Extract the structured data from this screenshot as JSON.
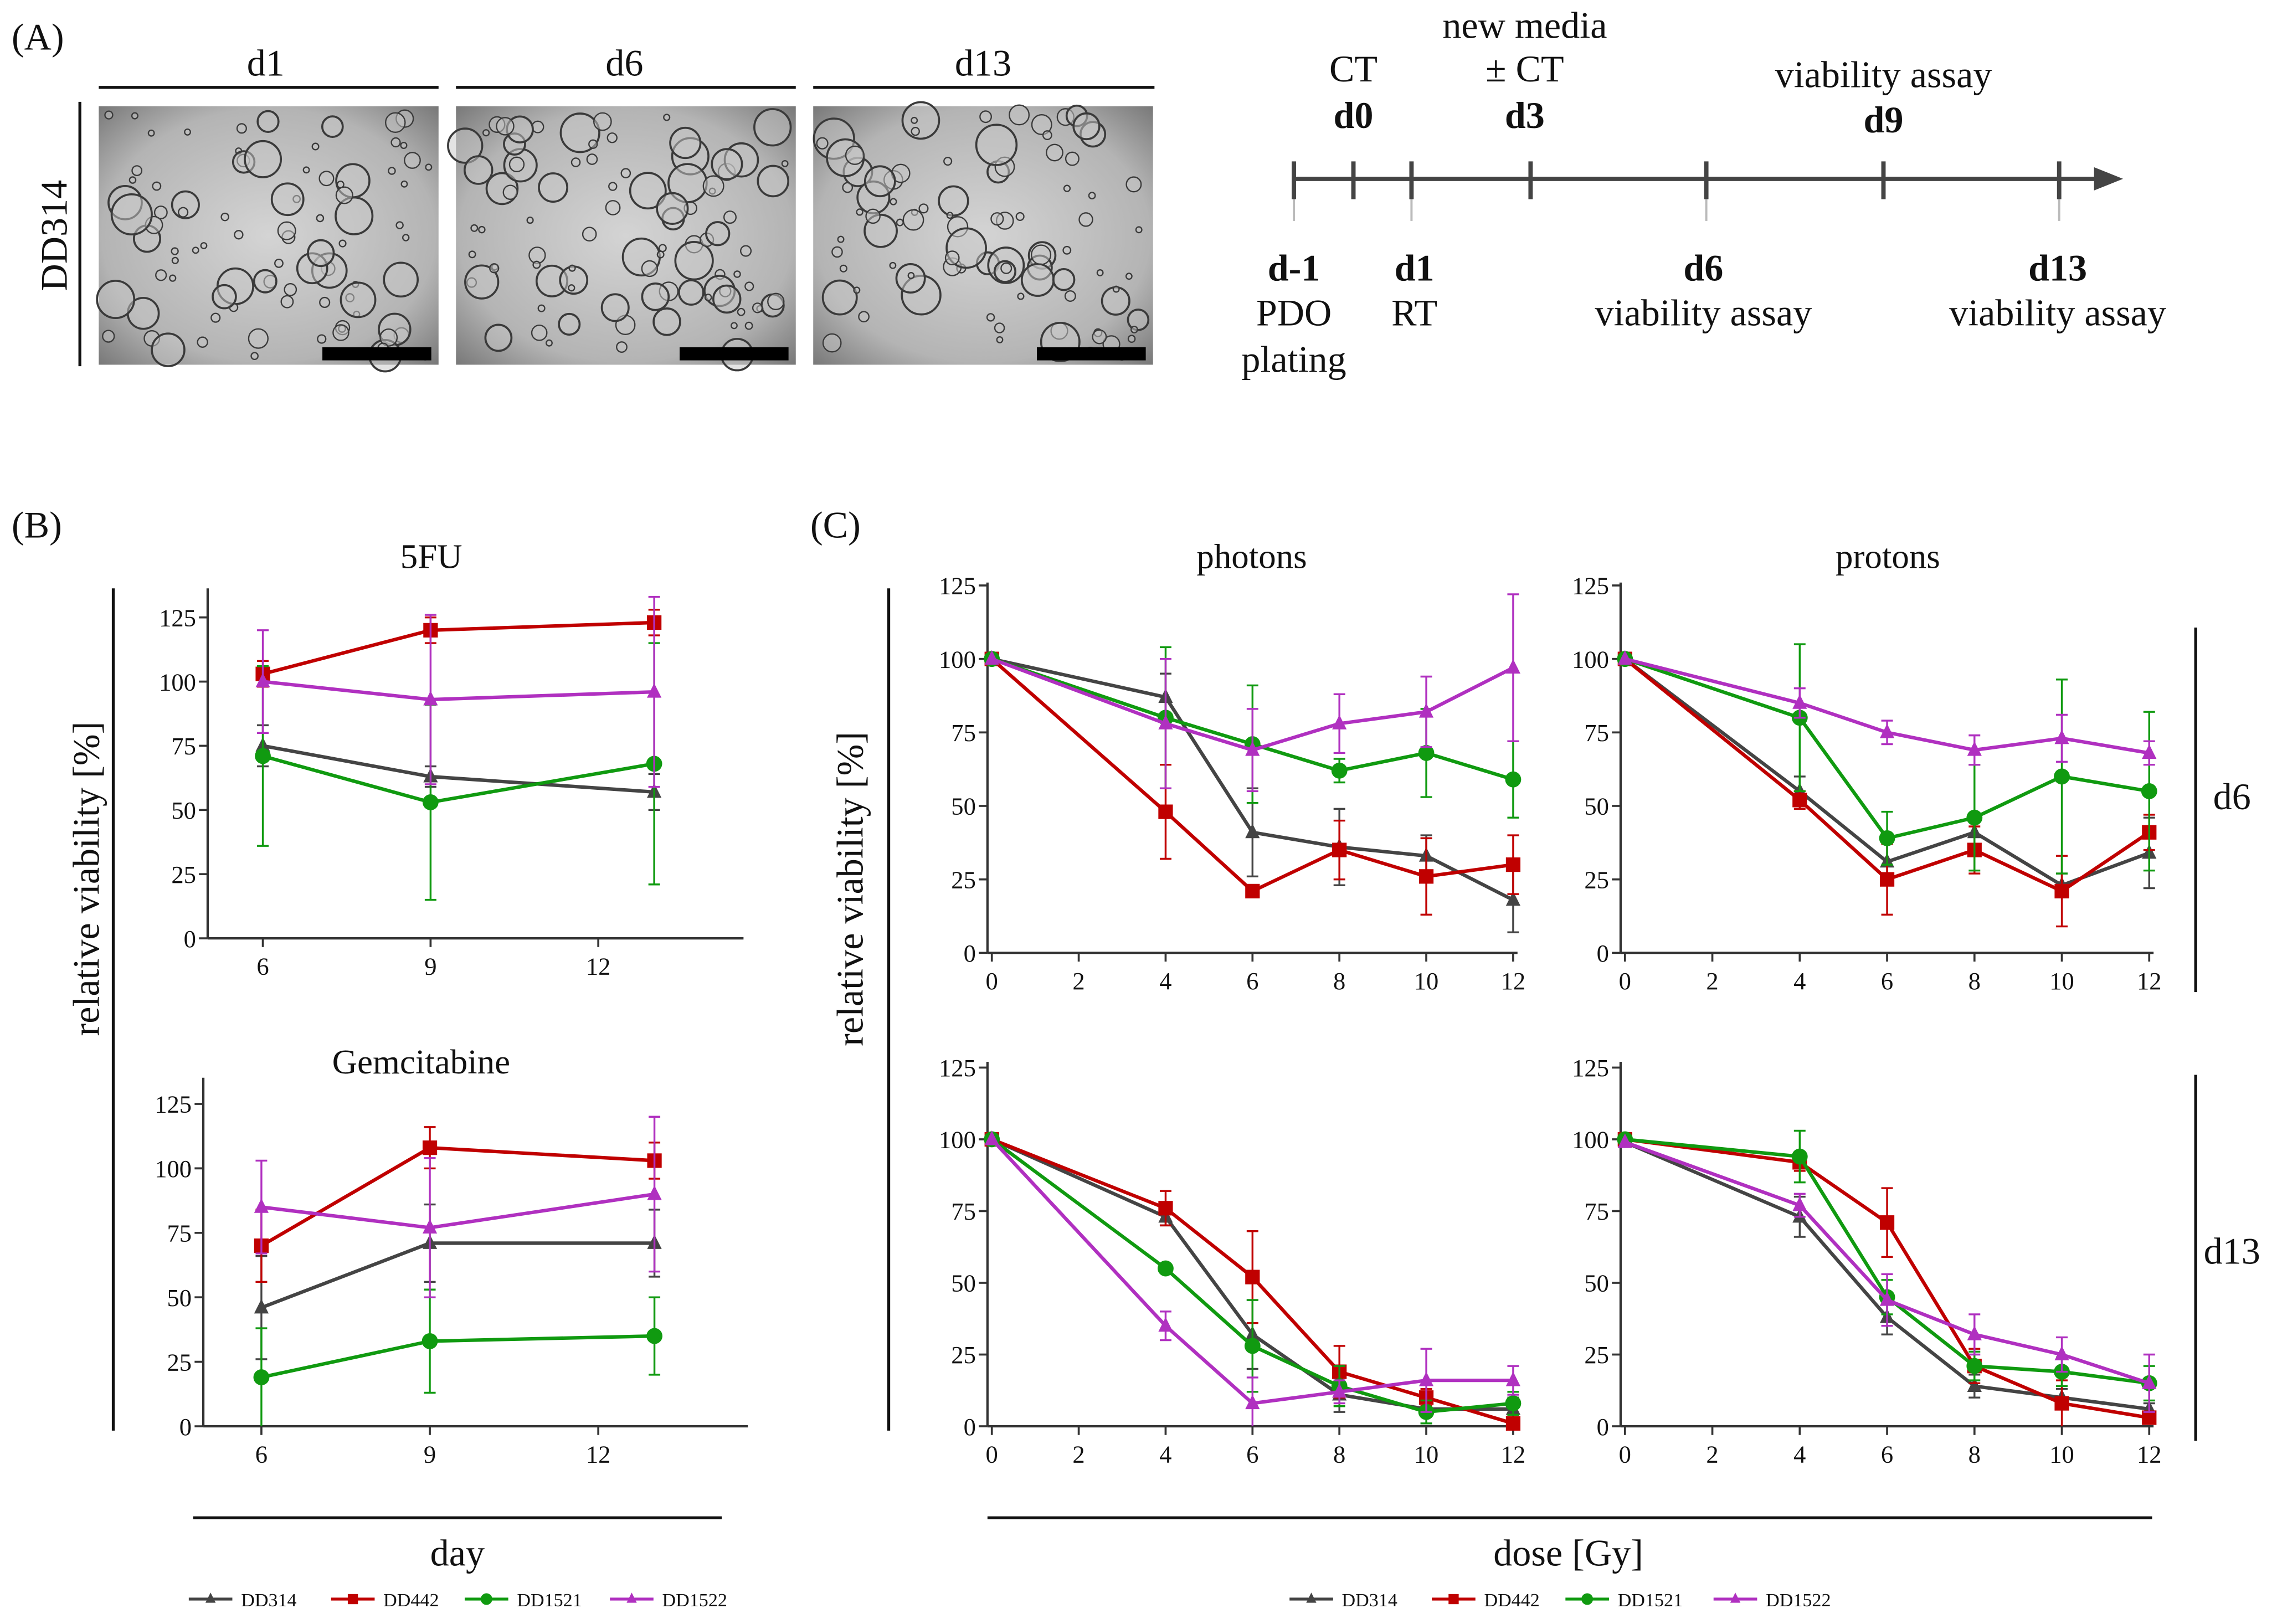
{
  "panel_a": {
    "label": "(A)",
    "sample": "DD314",
    "images": [
      {
        "day": "d1"
      },
      {
        "day": "d6"
      },
      {
        "day": "d13"
      }
    ],
    "timeline": {
      "above": [
        {
          "lines": [
            "CT"
          ],
          "day": "d0"
        },
        {
          "lines": [
            "new media",
            "± CT"
          ],
          "day": "d3"
        },
        {
          "lines": [
            "viability assay"
          ],
          "day": "d9"
        }
      ],
      "below": [
        {
          "day": "d-1",
          "lines": [
            "PDO",
            "plating"
          ]
        },
        {
          "day": "d1",
          "lines": [
            "RT"
          ]
        },
        {
          "day": "d6",
          "lines": [
            "viability assay"
          ]
        },
        {
          "day": "d13",
          "lines": [
            "viability assay"
          ]
        }
      ]
    }
  },
  "panel_b": {
    "label": "(B)",
    "ylabel": "relative viability [%]",
    "xlabel": "day"
  },
  "panel_c": {
    "label": "(C)",
    "ylabel": "relative viability [%]",
    "xlabel": "dose [Gy]",
    "row_labels": [
      "d6",
      "d13"
    ]
  },
  "legend": [
    "DD314",
    "DD442",
    "DD1521",
    "DD1522"
  ],
  "colors": {
    "DD314": "#444444",
    "DD442": "#c00000",
    "DD1521": "#109a10",
    "DD1522": "#b030c0"
  },
  "chart_data": [
    {
      "type": "line",
      "title": "5FU",
      "xlabel": "day",
      "ylabel": "relative viability [%]",
      "xticks": [
        6,
        9,
        12
      ],
      "yticks": [
        0,
        25,
        50,
        75,
        100,
        125
      ],
      "ylim": [
        0,
        125
      ],
      "x": [
        6,
        9,
        13
      ],
      "series": [
        {
          "name": "DD314",
          "values": [
            75,
            63,
            57
          ],
          "err": [
            8,
            4,
            7
          ]
        },
        {
          "name": "DD442",
          "values": [
            103,
            120,
            123
          ],
          "err": [
            5,
            5,
            5
          ]
        },
        {
          "name": "DD1521",
          "values": [
            71,
            53,
            68
          ],
          "err": [
            35,
            38,
            47
          ]
        },
        {
          "name": "DD1522",
          "values": [
            100,
            93,
            96
          ],
          "err": [
            20,
            33,
            37
          ]
        }
      ]
    },
    {
      "type": "line",
      "title": "Gemcitabine",
      "xlabel": "day",
      "ylabel": "relative viability [%]",
      "xticks": [
        6,
        9,
        12
      ],
      "yticks": [
        0,
        25,
        50,
        75,
        100,
        125
      ],
      "ylim": [
        0,
        125
      ],
      "x": [
        6,
        9,
        13
      ],
      "series": [
        {
          "name": "DD314",
          "values": [
            46,
            71,
            71
          ],
          "err": [
            20,
            15,
            13
          ]
        },
        {
          "name": "DD442",
          "values": [
            70,
            108,
            103
          ],
          "err": [
            14,
            8,
            7
          ]
        },
        {
          "name": "DD1521",
          "values": [
            19,
            33,
            35
          ],
          "err": [
            19,
            20,
            15
          ]
        },
        {
          "name": "DD1522",
          "values": [
            85,
            77,
            90
          ],
          "err": [
            18,
            27,
            30
          ]
        }
      ]
    },
    {
      "type": "line",
      "title": "photons",
      "row": "d6",
      "xlabel": "dose [Gy]",
      "ylabel": "relative viability [%]",
      "xticks": [
        0,
        2,
        4,
        6,
        8,
        10,
        12
      ],
      "yticks": [
        0,
        25,
        50,
        75,
        100,
        125
      ],
      "ylim": [
        0,
        125
      ],
      "x": [
        0,
        4,
        6,
        8,
        10,
        12
      ],
      "series": [
        {
          "name": "DD314",
          "values": [
            100,
            87,
            41,
            36,
            33,
            18
          ],
          "err": [
            0,
            8,
            15,
            13,
            7,
            11
          ]
        },
        {
          "name": "DD442",
          "values": [
            100,
            48,
            21,
            35,
            26,
            30
          ],
          "err": [
            0,
            16,
            2,
            10,
            13,
            10
          ]
        },
        {
          "name": "DD1521",
          "values": [
            100,
            80,
            71,
            62,
            68,
            59
          ],
          "err": [
            0,
            24,
            20,
            4,
            15,
            13
          ]
        },
        {
          "name": "DD1522",
          "values": [
            100,
            78,
            69,
            78,
            82,
            97
          ],
          "err": [
            0,
            22,
            14,
            10,
            12,
            25
          ]
        }
      ]
    },
    {
      "type": "line",
      "title": "protons",
      "row": "d6",
      "xlabel": "dose [Gy]",
      "ylabel": "relative viability [%]",
      "xticks": [
        0,
        2,
        4,
        6,
        8,
        10,
        12
      ],
      "yticks": [
        0,
        25,
        50,
        75,
        100,
        125
      ],
      "ylim": [
        0,
        125
      ],
      "x": [
        0,
        4,
        6,
        8,
        10,
        12
      ],
      "series": [
        {
          "name": "DD314",
          "values": [
            100,
            55,
            31,
            41,
            23,
            34
          ],
          "err": [
            0,
            5,
            8,
            6,
            4,
            12
          ]
        },
        {
          "name": "DD442",
          "values": [
            100,
            52,
            25,
            35,
            21,
            41
          ],
          "err": [
            0,
            3,
            12,
            8,
            12,
            6
          ]
        },
        {
          "name": "DD1521",
          "values": [
            100,
            80,
            39,
            46,
            60,
            55
          ],
          "err": [
            0,
            25,
            9,
            18,
            33,
            27
          ]
        },
        {
          "name": "DD1522",
          "values": [
            100,
            85,
            75,
            69,
            73,
            68
          ],
          "err": [
            0,
            5,
            4,
            5,
            8,
            4
          ]
        }
      ]
    },
    {
      "type": "line",
      "title": "",
      "row": "d13",
      "xlabel": "dose [Gy]",
      "ylabel": "relative viability [%]",
      "xticks": [
        0,
        2,
        4,
        6,
        8,
        10,
        12
      ],
      "yticks": [
        0,
        25,
        50,
        75,
        100,
        125
      ],
      "ylim": [
        0,
        125
      ],
      "x": [
        0,
        4,
        6,
        8,
        10,
        12
      ],
      "series": [
        {
          "name": "DD314",
          "values": [
            100,
            73,
            32,
            11,
            6,
            6
          ],
          "err": [
            0,
            3,
            12,
            6,
            2,
            4
          ]
        },
        {
          "name": "DD442",
          "values": [
            100,
            76,
            52,
            19,
            10,
            1
          ],
          "err": [
            0,
            6,
            16,
            9,
            3,
            1
          ]
        },
        {
          "name": "DD1521",
          "values": [
            100,
            55,
            28,
            14,
            5,
            8
          ],
          "err": [
            0,
            1,
            16,
            7,
            4,
            4
          ]
        },
        {
          "name": "DD1522",
          "values": [
            100,
            35,
            8,
            12,
            16,
            16
          ],
          "err": [
            0,
            5,
            9,
            4,
            11,
            5
          ]
        }
      ]
    },
    {
      "type": "line",
      "title": "",
      "row": "d13",
      "xlabel": "dose [Gy]",
      "ylabel": "relative viability [%]",
      "xticks": [
        0,
        2,
        4,
        6,
        8,
        10,
        12
      ],
      "yticks": [
        0,
        25,
        50,
        75,
        100,
        125
      ],
      "ylim": [
        0,
        125
      ],
      "x": [
        0,
        4,
        6,
        8,
        10,
        12
      ],
      "series": [
        {
          "name": "DD314",
          "values": [
            99,
            73,
            38,
            14,
            10,
            6
          ],
          "err": [
            0,
            7,
            6,
            4,
            3,
            2
          ]
        },
        {
          "name": "DD442",
          "values": [
            100,
            92,
            71,
            21,
            8,
            3
          ],
          "err": [
            0,
            3,
            12,
            6,
            8,
            2
          ]
        },
        {
          "name": "DD1521",
          "values": [
            100,
            94,
            45,
            21,
            19,
            15
          ],
          "err": [
            0,
            9,
            6,
            5,
            5,
            6
          ]
        },
        {
          "name": "DD1522",
          "values": [
            99,
            77,
            44,
            32,
            25,
            15
          ],
          "err": [
            0,
            4,
            9,
            7,
            6,
            10
          ]
        }
      ]
    }
  ]
}
